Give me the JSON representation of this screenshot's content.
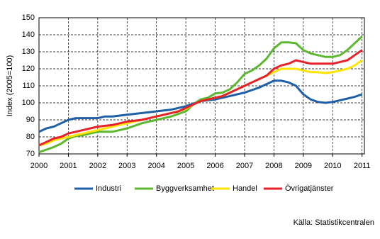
{
  "chart_data": {
    "type": "line",
    "y_label": "Index (2005=100)",
    "source": "Källa: Statistikcentralen",
    "x": [
      2000,
      2000.25,
      2000.5,
      2000.75,
      2001,
      2001.25,
      2001.5,
      2001.75,
      2002,
      2002.25,
      2002.5,
      2002.75,
      2003,
      2003.25,
      2003.5,
      2003.75,
      2004,
      2004.25,
      2004.5,
      2004.75,
      2005,
      2005.25,
      2005.5,
      2005.75,
      2006,
      2006.25,
      2006.5,
      2006.75,
      2007,
      2007.25,
      2007.5,
      2007.75,
      2008,
      2008.25,
      2008.5,
      2008.75,
      2009,
      2009.25,
      2009.5,
      2009.75,
      2010,
      2010.25,
      2010.5,
      2010.75,
      2011
    ],
    "series": [
      {
        "name": "Industri",
        "color": "#1f5fa8",
        "values": [
          83,
          85,
          86,
          88,
          90,
          91,
          91,
          91,
          91,
          92,
          92,
          92.5,
          93,
          93.5,
          94,
          94.5,
          95,
          95.5,
          96,
          97,
          98,
          99.5,
          101,
          101.5,
          102,
          103,
          104,
          105,
          106,
          107.5,
          109,
          111,
          113,
          113,
          112,
          110,
          105,
          102,
          100.5,
          100,
          100.5,
          101.5,
          102.5,
          103.5,
          105
        ]
      },
      {
        "name": "Byggverksamhet",
        "color": "#5cb82e",
        "values": [
          71,
          72.5,
          74,
          76,
          79,
          80.5,
          81,
          82,
          83,
          83,
          83,
          84,
          85,
          86.5,
          88,
          89,
          90,
          91,
          92,
          93.5,
          95,
          99,
          102,
          103,
          105.5,
          106,
          108,
          112,
          117,
          119,
          122,
          126,
          132,
          135.5,
          135.5,
          135,
          131,
          129,
          128,
          127,
          127,
          128,
          131,
          135,
          139
        ]
      },
      {
        "name": "Handel",
        "color": "#ffe400",
        "values": [
          75,
          76,
          78,
          79,
          80,
          81,
          82,
          83,
          84,
          85,
          86,
          87,
          88,
          89,
          90,
          91,
          92,
          93,
          94,
          95,
          96.5,
          99,
          101,
          102,
          103,
          104,
          106,
          108,
          110,
          112,
          114,
          116,
          118,
          120,
          120,
          120,
          119,
          118,
          118,
          117.5,
          118,
          119,
          120,
          122,
          125
        ]
      },
      {
        "name": "Övrigatjänster",
        "color": "#e8202a",
        "values": [
          75,
          77,
          79,
          80,
          82,
          83,
          84,
          85,
          86,
          86.5,
          87,
          88,
          89,
          89.5,
          90,
          91,
          92,
          93,
          94,
          95,
          97,
          99,
          101,
          102,
          103,
          104,
          106,
          108,
          110,
          112,
          114,
          116,
          120,
          122,
          123,
          125,
          124,
          123,
          123,
          123,
          123,
          124,
          125,
          128,
          131
        ]
      }
    ],
    "xlim": [
      2000,
      2011.08
    ],
    "xticks": [
      2000,
      2001,
      2002,
      2003,
      2004,
      2005,
      2006,
      2007,
      2008,
      2009,
      2010,
      2011
    ],
    "ylim": [
      70,
      150
    ],
    "yticks": [
      70,
      80,
      90,
      100,
      110,
      120,
      130,
      140,
      150
    ],
    "grid": true
  }
}
